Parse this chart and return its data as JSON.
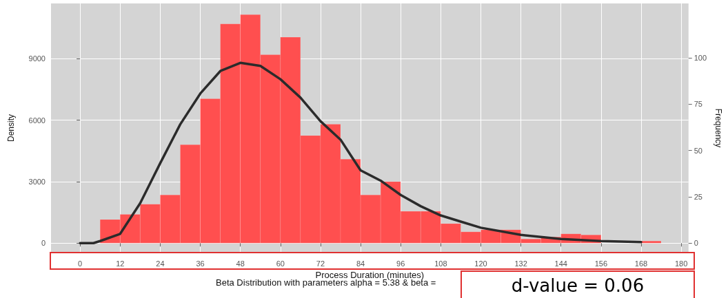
{
  "chart_data": {
    "type": "histogram",
    "xlabel": "Process Duration (minutes)",
    "ylabel": "Density",
    "y2label": "Frequency",
    "series": [
      {
        "color": "#ff4f4f",
        "bins": [
          6,
          12,
          18,
          24,
          30,
          36,
          42,
          48,
          54,
          60,
          66,
          72,
          78,
          84,
          90,
          96,
          102,
          108,
          114,
          120,
          126,
          132,
          138,
          144,
          150,
          156,
          162,
          168,
          174
        ],
        "values": [
          1150,
          1400,
          1900,
          2350,
          4800,
          7050,
          10700,
          11150,
          9200,
          10050,
          5250,
          5800,
          4100,
          2350,
          3000,
          1550,
          1550,
          950,
          550,
          650,
          650,
          200,
          300,
          450,
          400,
          null,
          null,
          100
        ]
      },
      {
        "type": "line",
        "color": "#2b2b2b",
        "x": [
          0,
          4,
          6,
          12,
          18,
          24,
          30,
          36,
          42,
          48,
          54,
          60,
          66,
          72,
          78,
          84,
          90,
          96,
          102,
          108,
          114,
          120,
          132,
          144,
          156,
          168
        ],
        "values": [
          0,
          0,
          100,
          450,
          1950,
          3900,
          5800,
          7300,
          8400,
          8800,
          8650,
          8000,
          7100,
          5950,
          5050,
          3550,
          3050,
          2350,
          1800,
          1350,
          1050,
          750,
          400,
          200,
          100,
          50
        ]
      }
    ],
    "xlim": [
      -8.7,
      182.2
    ],
    "xticks": [
      0,
      12,
      24,
      36,
      48,
      60,
      72,
      84,
      96,
      108,
      120,
      132,
      144,
      156,
      168,
      180
    ],
    "ylim": [
      -463,
      11700
    ],
    "yticks": [
      0,
      3000,
      6000,
      9000
    ],
    "y2lim": [
      -5.1,
      129.3
    ],
    "y2ticks": [
      0,
      25,
      50,
      75,
      100
    ],
    "grid": true,
    "marker": "none",
    "line_style": "solid",
    "annotations": [
      "Beta Distribution with parameters alpha = 5.38 & beta =",
      "d-value = 0.06"
    ]
  }
}
